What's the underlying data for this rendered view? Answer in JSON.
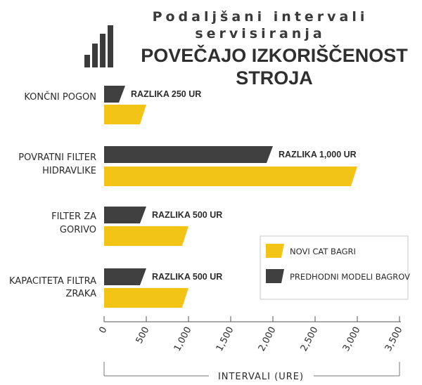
{
  "colors": {
    "new": "#f2c416",
    "old": "#404040",
    "axis": "#555555",
    "legend_border": "#c8c8c8"
  },
  "logo_icon": "bar-chart-icon",
  "chart_data": {
    "type": "bar",
    "orientation": "horizontal",
    "title_line1": "Podaljšani intervali",
    "title_line2": "servisiranja",
    "title_line3": "POVEČAJO IZKORIŠČENOST",
    "title_line4": "STROJA",
    "xlabel": "INTERVALI (URE)",
    "xlim": [
      0,
      3500
    ],
    "xticks": [
      "0",
      "500",
      "1,000",
      "1,500",
      "2,000",
      "2,500",
      "3,000",
      "3,500"
    ],
    "xtick_values": [
      0,
      500,
      1000,
      1500,
      2000,
      2500,
      3000,
      3500
    ],
    "grid": false,
    "legend_position": "right-middle",
    "categories": [
      {
        "line1": "KONČNI POGON",
        "line2": ""
      },
      {
        "line1": "POVRATNI FILTER",
        "line2": "HIDRAVLIKE"
      },
      {
        "line1": "FILTER ZA",
        "line2": "GORIVO"
      },
      {
        "line1": "KAPACITETA FILTRA",
        "line2": "ZRAKA"
      }
    ],
    "series": [
      {
        "name": "PREDHODNI MODELI BAGROV",
        "values": [
          250,
          2000,
          500,
          500
        ]
      },
      {
        "name": "NOVI CAT BAGRI",
        "values": [
          500,
          3000,
          1000,
          1000
        ]
      }
    ],
    "annotations": [
      "RAZLIKA 250 UR",
      "RAZLIKA 1,000 UR",
      "RAZLIKA 500 UR",
      "RAZLIKA 500 UR"
    ]
  }
}
